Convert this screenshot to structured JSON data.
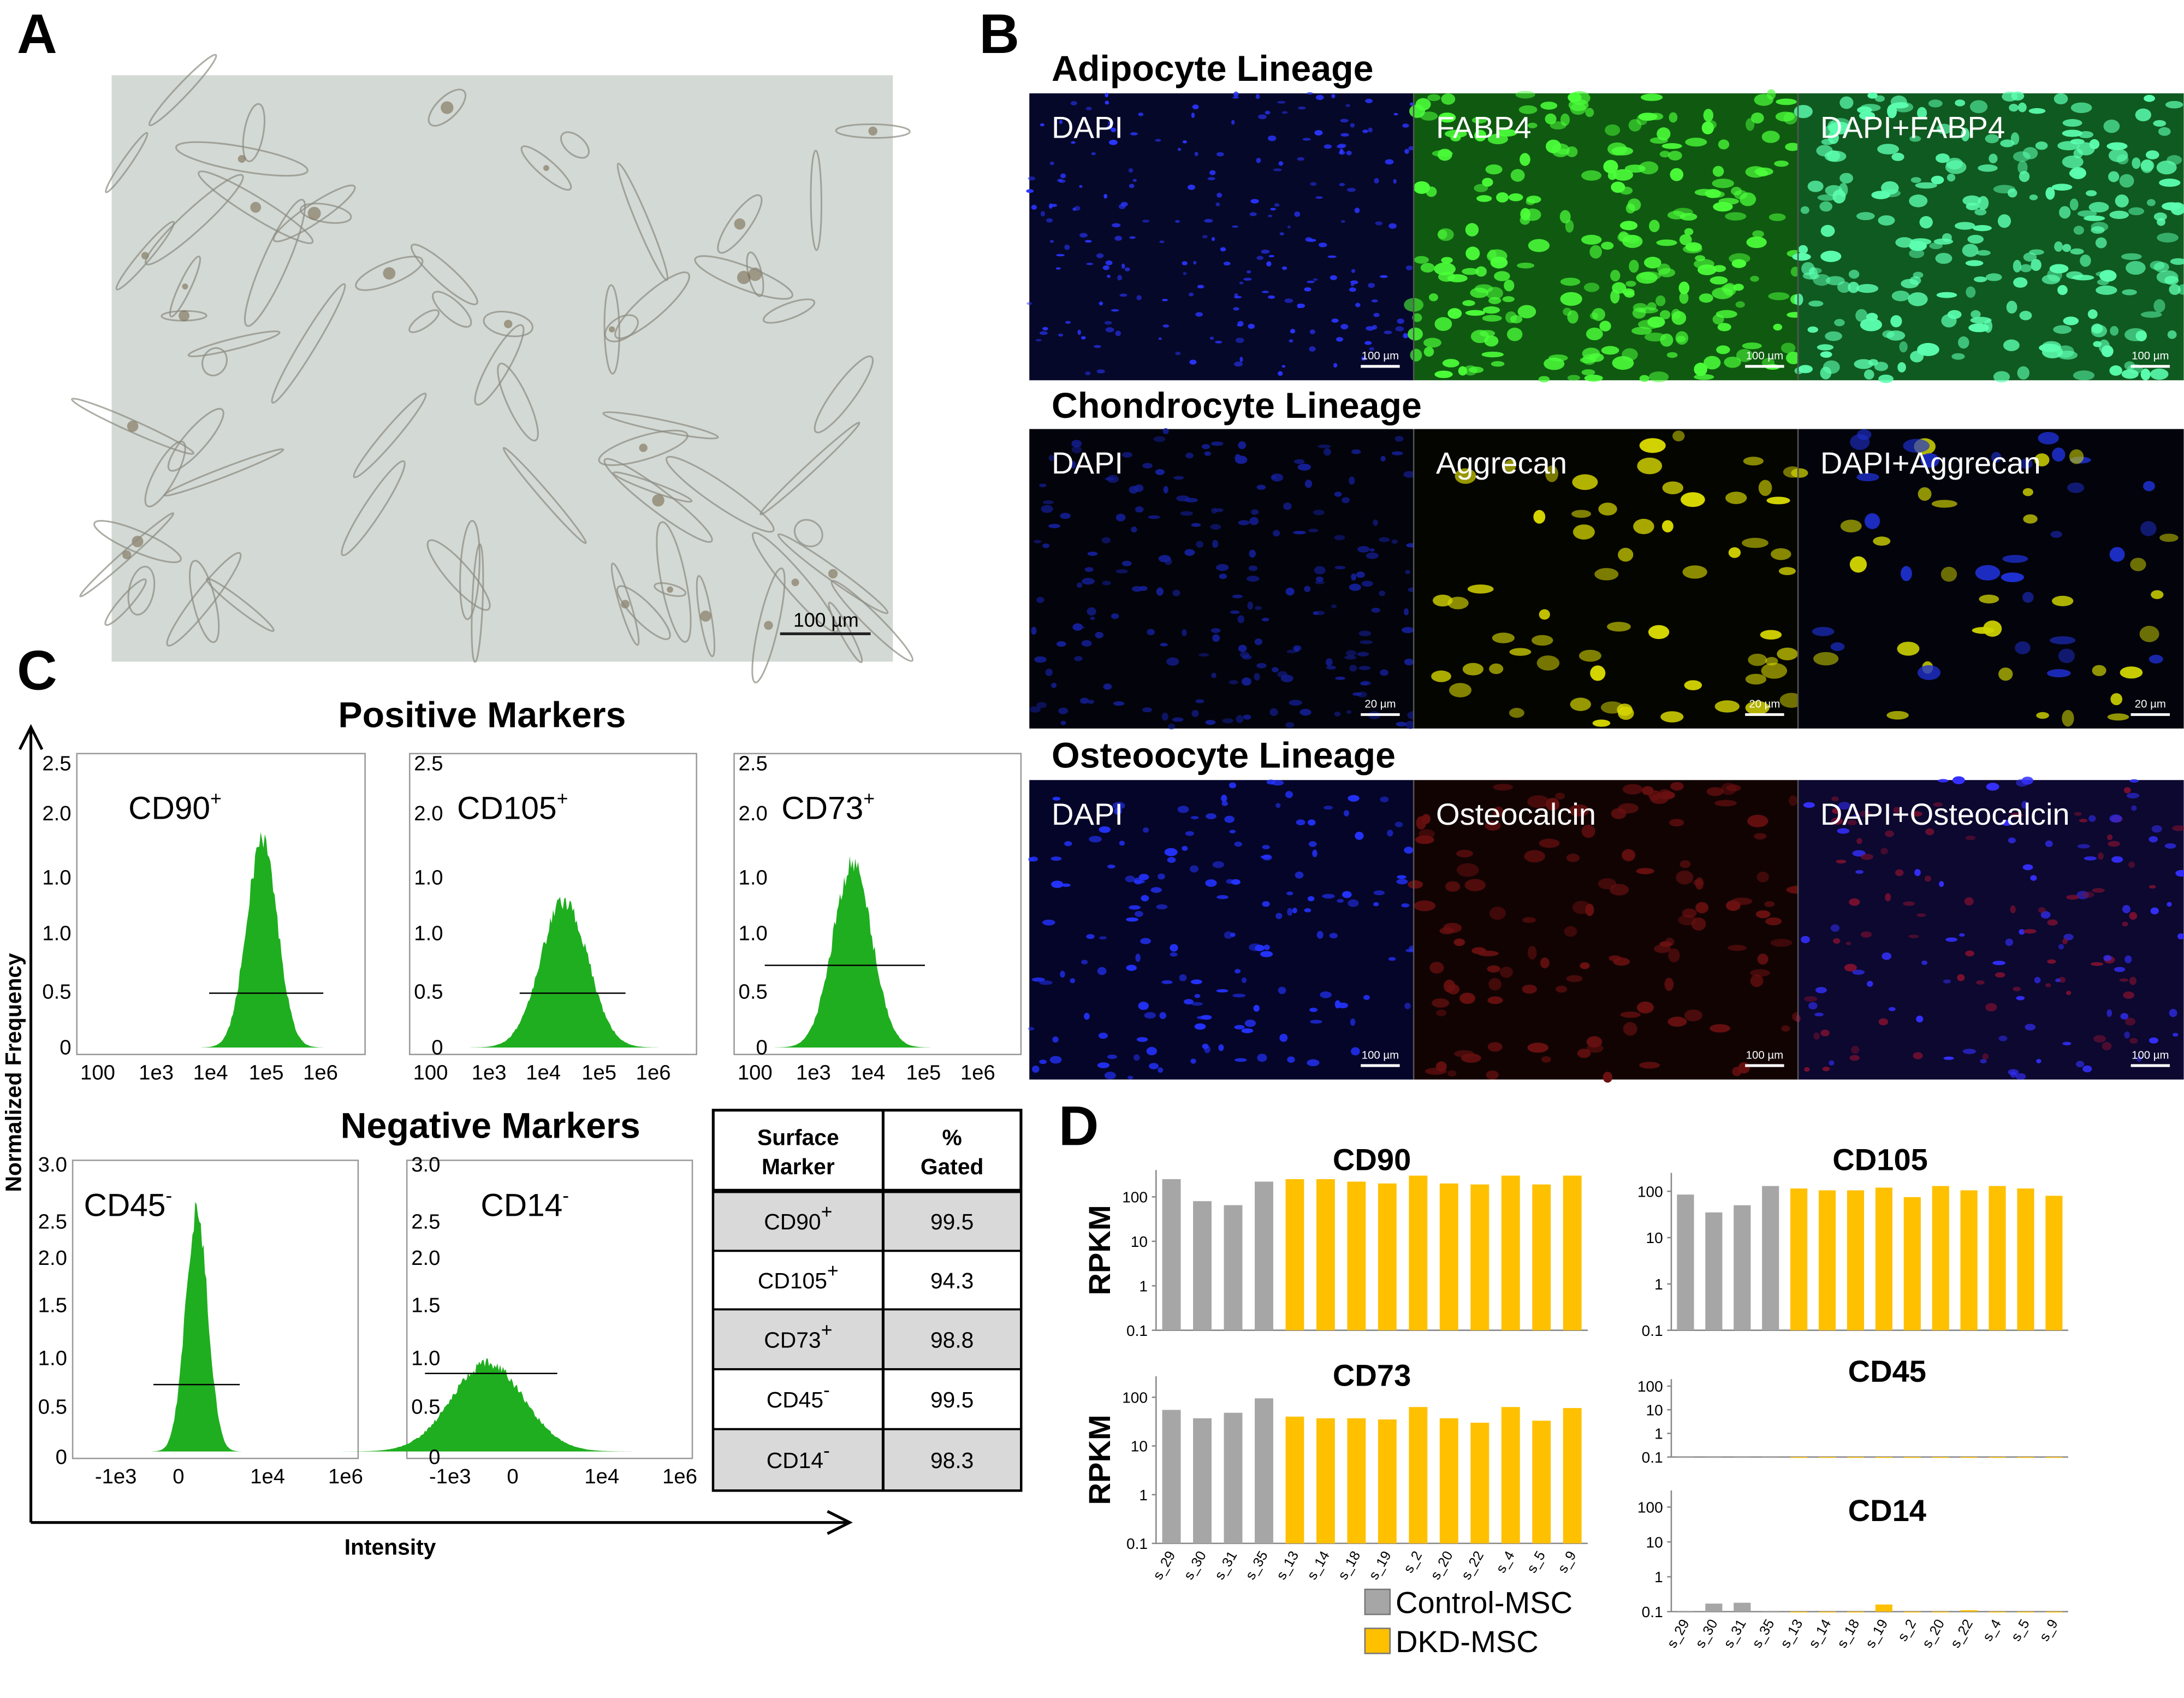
{
  "panel_labels": {
    "a": "A",
    "b": "B",
    "c": "C",
    "d": "D"
  },
  "panel_a": {
    "scale_bar": "100 µm"
  },
  "panel_b": {
    "lineages": [
      {
        "title": "Adipocyte Lineage",
        "images": [
          {
            "label": "DAPI",
            "scale_bar": "100 µm"
          },
          {
            "label": "FABP4",
            "scale_bar": "100 µm"
          },
          {
            "label": "DAPI+FABP4",
            "scale_bar": "100 µm"
          }
        ]
      },
      {
        "title": "Chondrocyte Lineage",
        "images": [
          {
            "label": "DAPI",
            "scale_bar": "20 µm"
          },
          {
            "label": "Aggrecan",
            "scale_bar": "20 µm"
          },
          {
            "label": "DAPI+Aggrecan",
            "scale_bar": "20 µm"
          }
        ]
      },
      {
        "title": "Osteoocyte Lineage",
        "images": [
          {
            "label": "DAPI",
            "scale_bar": "100 µm"
          },
          {
            "label": "Osteocalcin",
            "scale_bar": "100 µm"
          },
          {
            "label": "DAPI+Osteocalcin",
            "scale_bar": "100 µm"
          }
        ]
      }
    ]
  },
  "panel_c": {
    "positive_title": "Positive Markers",
    "negative_title": "Negative Markers",
    "y_label": "Normalized Frequency",
    "x_label": "Intensity",
    "histograms": [
      {
        "marker": "CD90",
        "sign": "+",
        "yticks": [
          "2.5",
          "2.0",
          "1.0",
          "1.0",
          "0.5",
          "0"
        ],
        "xticks": [
          "100",
          "1e3",
          "1e4",
          "1e5",
          "1e6"
        ]
      },
      {
        "marker": "CD105",
        "sign": "+",
        "yticks": [
          "2.5",
          "2.0",
          "1.0",
          "1.0",
          "0.5",
          "0"
        ],
        "xticks": [
          "100",
          "1e3",
          "1e4",
          "1e5",
          "1e6"
        ]
      },
      {
        "marker": "CD73",
        "sign": "+",
        "yticks": [
          "2.5",
          "2.0",
          "1.0",
          "1.0",
          "0.5",
          "0"
        ],
        "xticks": [
          "100",
          "1e3",
          "1e4",
          "1e5",
          "1e6"
        ]
      },
      {
        "marker": "CD45",
        "sign": "-",
        "yticks": [
          "3.0",
          "2.5",
          "2.0",
          "1.5",
          "1.0",
          "0.5",
          "0"
        ],
        "xticks": [
          "-1e3",
          "0",
          "1e4",
          "1e6"
        ]
      },
      {
        "marker": "CD14",
        "sign": "-",
        "yticks": [
          "3.0",
          "2.5",
          "2.0",
          "1.5",
          "1.0",
          "0.5",
          "0"
        ],
        "xticks": [
          "-1e3",
          "0",
          "1e4",
          "1e6"
        ]
      }
    ],
    "table": {
      "header": [
        [
          "Surface",
          "Marker"
        ],
        [
          "%",
          "Gated"
        ]
      ],
      "rows": [
        {
          "marker": "CD90",
          "sign": "+",
          "gated": "99.5"
        },
        {
          "marker": "CD105",
          "sign": "+",
          "gated": "94.3"
        },
        {
          "marker": "CD73",
          "sign": "+",
          "gated": "98.8"
        },
        {
          "marker": "CD45",
          "sign": "-",
          "gated": "99.5"
        },
        {
          "marker": "CD14",
          "sign": "-",
          "gated": "98.3"
        }
      ]
    }
  },
  "chart_data": [
    {
      "type": "bar",
      "title": "CD90",
      "y_label": "RPKM",
      "log_scale": true,
      "ylim": [
        0.1,
        400
      ],
      "yticks": [
        0.1,
        1,
        10,
        100
      ],
      "series": [
        {
          "color": "#a6a6a6",
          "values": [
            250,
            80,
            65,
            220,
            null,
            null,
            null,
            null,
            null,
            null,
            null,
            null,
            null,
            null
          ]
        },
        {
          "color": "#ffc000",
          "values": [
            null,
            null,
            null,
            null,
            250,
            250,
            220,
            200,
            300,
            200,
            190,
            300,
            190,
            300
          ]
        }
      ]
    },
    {
      "type": "bar",
      "title": "CD105",
      "log_scale": true,
      "ylim": [
        0.1,
        250
      ],
      "yticks": [
        0.1,
        1,
        10,
        100
      ],
      "series": [
        {
          "color": "#a6a6a6",
          "values": [
            85,
            35,
            50,
            130,
            null,
            null,
            null,
            null,
            null,
            null,
            null,
            null,
            null,
            null
          ]
        },
        {
          "color": "#ffc000",
          "values": [
            null,
            null,
            null,
            null,
            115,
            105,
            105,
            120,
            75,
            130,
            105,
            130,
            115,
            80
          ]
        }
      ]
    },
    {
      "type": "bar",
      "title": "CD73",
      "y_label": "RPKM",
      "log_scale": true,
      "ylim": [
        0.1,
        270
      ],
      "yticks": [
        0.1,
        1,
        10,
        100
      ],
      "categories": [
        "s_29",
        "s_30",
        "s_31",
        "s_35",
        "s_13",
        "s_14",
        "s_18",
        "s_19",
        "s_2",
        "s_20",
        "s_22",
        "s_4",
        "s_5",
        "s_9"
      ],
      "series": [
        {
          "name": "Control-MSC",
          "color": "#a6a6a6",
          "values": [
            55,
            37,
            48,
            95,
            null,
            null,
            null,
            null,
            null,
            null,
            null,
            null,
            null,
            null
          ]
        },
        {
          "name": "DKD-MSC",
          "color": "#ffc000",
          "values": [
            null,
            null,
            null,
            null,
            40,
            37,
            37,
            35,
            63,
            37,
            30,
            63,
            33,
            60
          ]
        }
      ]
    },
    {
      "type": "bar",
      "title": "CD45",
      "log_scale": true,
      "ylim": [
        0.1,
        200
      ],
      "yticks": [
        0.1,
        1,
        10,
        100
      ],
      "series": [
        {
          "color": "#a6a6a6",
          "values": [
            0.1,
            0.1,
            0.1,
            0.1,
            null,
            null,
            null,
            null,
            null,
            null,
            null,
            null,
            null,
            null
          ]
        },
        {
          "color": "#ffc000",
          "values": [
            null,
            null,
            null,
            null,
            0.1,
            0.1,
            0.1,
            0.1,
            0.1,
            0.1,
            0.1,
            0.1,
            0.1,
            0.1
          ]
        }
      ]
    },
    {
      "type": "bar",
      "title": "CD14",
      "log_scale": true,
      "ylim": [
        0.1,
        300
      ],
      "yticks": [
        0.1,
        1,
        10,
        100
      ],
      "categories": [
        "s_29",
        "s_30",
        "s_31",
        "s_35",
        "s_13",
        "s_14",
        "s_18",
        "s_19",
        "s_2",
        "s_20",
        "s_22",
        "s_4",
        "s_5",
        "s_9"
      ],
      "series": [
        {
          "color": "#a6a6a6",
          "values": [
            0.1,
            0.17,
            0.18,
            0.1,
            null,
            null,
            null,
            null,
            null,
            null,
            null,
            null,
            null,
            null
          ]
        },
        {
          "color": "#ffc000",
          "values": [
            null,
            null,
            null,
            null,
            0.1,
            0.1,
            0.1,
            0.16,
            0.1,
            0.1,
            0.11,
            0.1,
            0.1,
            0.1
          ]
        }
      ]
    }
  ]
}
